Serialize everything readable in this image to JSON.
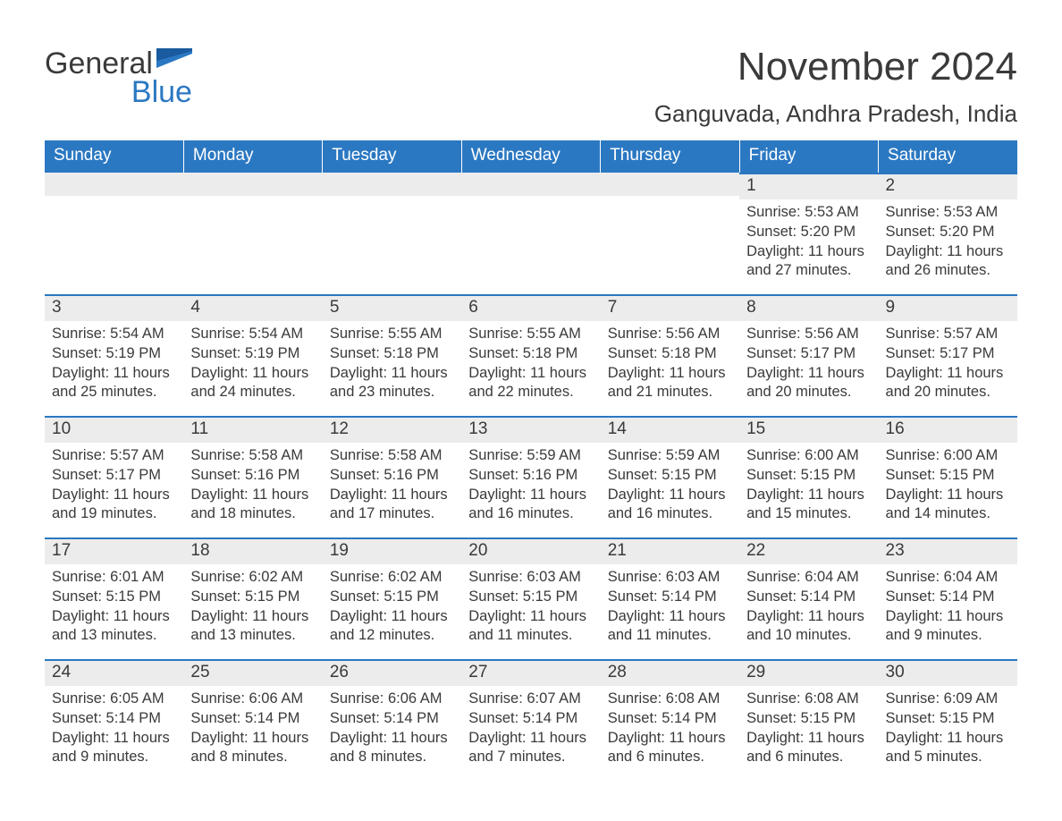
{
  "brand": {
    "general": "General",
    "blue": "Blue"
  },
  "title": "November 2024",
  "location": "Ganguvada, Andhra Pradesh, India",
  "colors": {
    "header_bg": "#2b78c2",
    "header_text": "#ffffff",
    "daynum_bg": "#ececec",
    "daynum_border": "#2b78c2",
    "body_text": "#3a3a3a",
    "page_bg": "#ffffff"
  },
  "weekdays": [
    "Sunday",
    "Monday",
    "Tuesday",
    "Wednesday",
    "Thursday",
    "Friday",
    "Saturday"
  ],
  "weeks": [
    [
      null,
      null,
      null,
      null,
      null,
      {
        "n": "1",
        "sunrise": "Sunrise: 5:53 AM",
        "sunset": "Sunset: 5:20 PM",
        "daylight": "Daylight: 11 hours and 27 minutes."
      },
      {
        "n": "2",
        "sunrise": "Sunrise: 5:53 AM",
        "sunset": "Sunset: 5:20 PM",
        "daylight": "Daylight: 11 hours and 26 minutes."
      }
    ],
    [
      {
        "n": "3",
        "sunrise": "Sunrise: 5:54 AM",
        "sunset": "Sunset: 5:19 PM",
        "daylight": "Daylight: 11 hours and 25 minutes."
      },
      {
        "n": "4",
        "sunrise": "Sunrise: 5:54 AM",
        "sunset": "Sunset: 5:19 PM",
        "daylight": "Daylight: 11 hours and 24 minutes."
      },
      {
        "n": "5",
        "sunrise": "Sunrise: 5:55 AM",
        "sunset": "Sunset: 5:18 PM",
        "daylight": "Daylight: 11 hours and 23 minutes."
      },
      {
        "n": "6",
        "sunrise": "Sunrise: 5:55 AM",
        "sunset": "Sunset: 5:18 PM",
        "daylight": "Daylight: 11 hours and 22 minutes."
      },
      {
        "n": "7",
        "sunrise": "Sunrise: 5:56 AM",
        "sunset": "Sunset: 5:18 PM",
        "daylight": "Daylight: 11 hours and 21 minutes."
      },
      {
        "n": "8",
        "sunrise": "Sunrise: 5:56 AM",
        "sunset": "Sunset: 5:17 PM",
        "daylight": "Daylight: 11 hours and 20 minutes."
      },
      {
        "n": "9",
        "sunrise": "Sunrise: 5:57 AM",
        "sunset": "Sunset: 5:17 PM",
        "daylight": "Daylight: 11 hours and 20 minutes."
      }
    ],
    [
      {
        "n": "10",
        "sunrise": "Sunrise: 5:57 AM",
        "sunset": "Sunset: 5:17 PM",
        "daylight": "Daylight: 11 hours and 19 minutes."
      },
      {
        "n": "11",
        "sunrise": "Sunrise: 5:58 AM",
        "sunset": "Sunset: 5:16 PM",
        "daylight": "Daylight: 11 hours and 18 minutes."
      },
      {
        "n": "12",
        "sunrise": "Sunrise: 5:58 AM",
        "sunset": "Sunset: 5:16 PM",
        "daylight": "Daylight: 11 hours and 17 minutes."
      },
      {
        "n": "13",
        "sunrise": "Sunrise: 5:59 AM",
        "sunset": "Sunset: 5:16 PM",
        "daylight": "Daylight: 11 hours and 16 minutes."
      },
      {
        "n": "14",
        "sunrise": "Sunrise: 5:59 AM",
        "sunset": "Sunset: 5:15 PM",
        "daylight": "Daylight: 11 hours and 16 minutes."
      },
      {
        "n": "15",
        "sunrise": "Sunrise: 6:00 AM",
        "sunset": "Sunset: 5:15 PM",
        "daylight": "Daylight: 11 hours and 15 minutes."
      },
      {
        "n": "16",
        "sunrise": "Sunrise: 6:00 AM",
        "sunset": "Sunset: 5:15 PM",
        "daylight": "Daylight: 11 hours and 14 minutes."
      }
    ],
    [
      {
        "n": "17",
        "sunrise": "Sunrise: 6:01 AM",
        "sunset": "Sunset: 5:15 PM",
        "daylight": "Daylight: 11 hours and 13 minutes."
      },
      {
        "n": "18",
        "sunrise": "Sunrise: 6:02 AM",
        "sunset": "Sunset: 5:15 PM",
        "daylight": "Daylight: 11 hours and 13 minutes."
      },
      {
        "n": "19",
        "sunrise": "Sunrise: 6:02 AM",
        "sunset": "Sunset: 5:15 PM",
        "daylight": "Daylight: 11 hours and 12 minutes."
      },
      {
        "n": "20",
        "sunrise": "Sunrise: 6:03 AM",
        "sunset": "Sunset: 5:15 PM",
        "daylight": "Daylight: 11 hours and 11 minutes."
      },
      {
        "n": "21",
        "sunrise": "Sunrise: 6:03 AM",
        "sunset": "Sunset: 5:14 PM",
        "daylight": "Daylight: 11 hours and 11 minutes."
      },
      {
        "n": "22",
        "sunrise": "Sunrise: 6:04 AM",
        "sunset": "Sunset: 5:14 PM",
        "daylight": "Daylight: 11 hours and 10 minutes."
      },
      {
        "n": "23",
        "sunrise": "Sunrise: 6:04 AM",
        "sunset": "Sunset: 5:14 PM",
        "daylight": "Daylight: 11 hours and 9 minutes."
      }
    ],
    [
      {
        "n": "24",
        "sunrise": "Sunrise: 6:05 AM",
        "sunset": "Sunset: 5:14 PM",
        "daylight": "Daylight: 11 hours and 9 minutes."
      },
      {
        "n": "25",
        "sunrise": "Sunrise: 6:06 AM",
        "sunset": "Sunset: 5:14 PM",
        "daylight": "Daylight: 11 hours and 8 minutes."
      },
      {
        "n": "26",
        "sunrise": "Sunrise: 6:06 AM",
        "sunset": "Sunset: 5:14 PM",
        "daylight": "Daylight: 11 hours and 8 minutes."
      },
      {
        "n": "27",
        "sunrise": "Sunrise: 6:07 AM",
        "sunset": "Sunset: 5:14 PM",
        "daylight": "Daylight: 11 hours and 7 minutes."
      },
      {
        "n": "28",
        "sunrise": "Sunrise: 6:08 AM",
        "sunset": "Sunset: 5:14 PM",
        "daylight": "Daylight: 11 hours and 6 minutes."
      },
      {
        "n": "29",
        "sunrise": "Sunrise: 6:08 AM",
        "sunset": "Sunset: 5:15 PM",
        "daylight": "Daylight: 11 hours and 6 minutes."
      },
      {
        "n": "30",
        "sunrise": "Sunrise: 6:09 AM",
        "sunset": "Sunset: 5:15 PM",
        "daylight": "Daylight: 11 hours and 5 minutes."
      }
    ]
  ]
}
